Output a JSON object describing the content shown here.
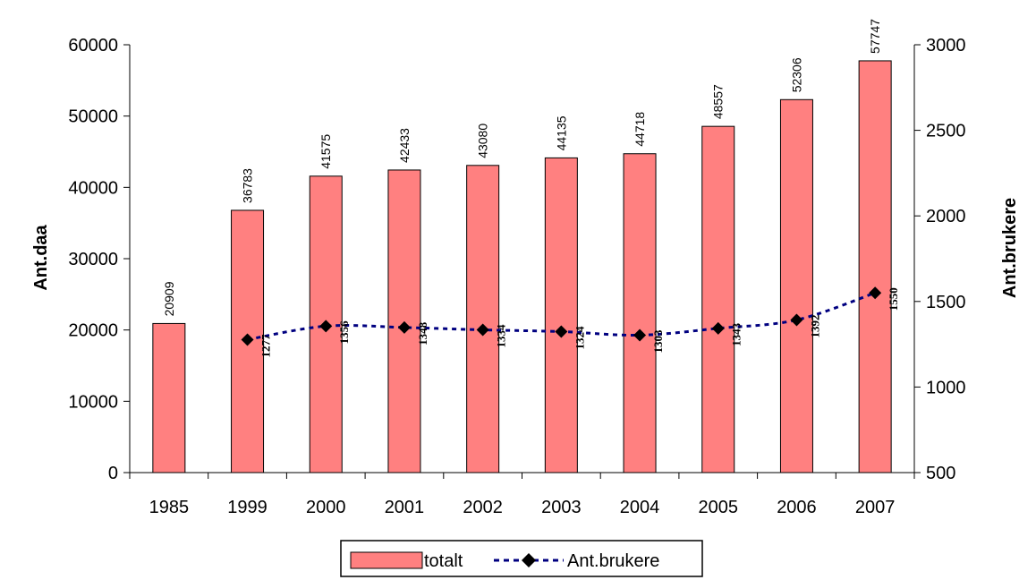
{
  "chart_data": {
    "type": "bar",
    "categories": [
      "1985",
      "1999",
      "2000",
      "2001",
      "2002",
      "2003",
      "2004",
      "2005",
      "2006",
      "2007"
    ],
    "series": [
      {
        "name": "totalt",
        "type": "bar",
        "axis": "left",
        "color": "#ff8080",
        "values": [
          20909,
          36783,
          41575,
          42433,
          43080,
          44135,
          44718,
          48557,
          52306,
          57747
        ],
        "labels": [
          "20909",
          "36783",
          "41575",
          "42433",
          "43080",
          "44135",
          "44718",
          "48557",
          "52306",
          "57747"
        ]
      },
      {
        "name": "Ant.brukere",
        "type": "line",
        "axis": "right",
        "color": "#000080",
        "line_style": "dashed",
        "marker": "diamond",
        "values": [
          null,
          1277,
          1356,
          1348,
          1334,
          1324,
          1303,
          1343,
          1392,
          1550
        ],
        "labels": [
          "",
          "1277",
          "1356",
          "1348",
          "1334",
          "1324",
          "1303",
          "1343",
          "1392",
          "1550"
        ]
      }
    ],
    "ylabel": "Ant.daa",
    "y2label": "Ant.brukere",
    "ylim": [
      0,
      60000
    ],
    "y2lim": [
      500,
      3000
    ],
    "yticks": [
      "0",
      "10000",
      "20000",
      "30000",
      "40000",
      "50000",
      "60000"
    ],
    "y2ticks": [
      "500",
      "1000",
      "1500",
      "2000",
      "2500",
      "3000"
    ],
    "grid": false,
    "legend_position": "bottom"
  }
}
